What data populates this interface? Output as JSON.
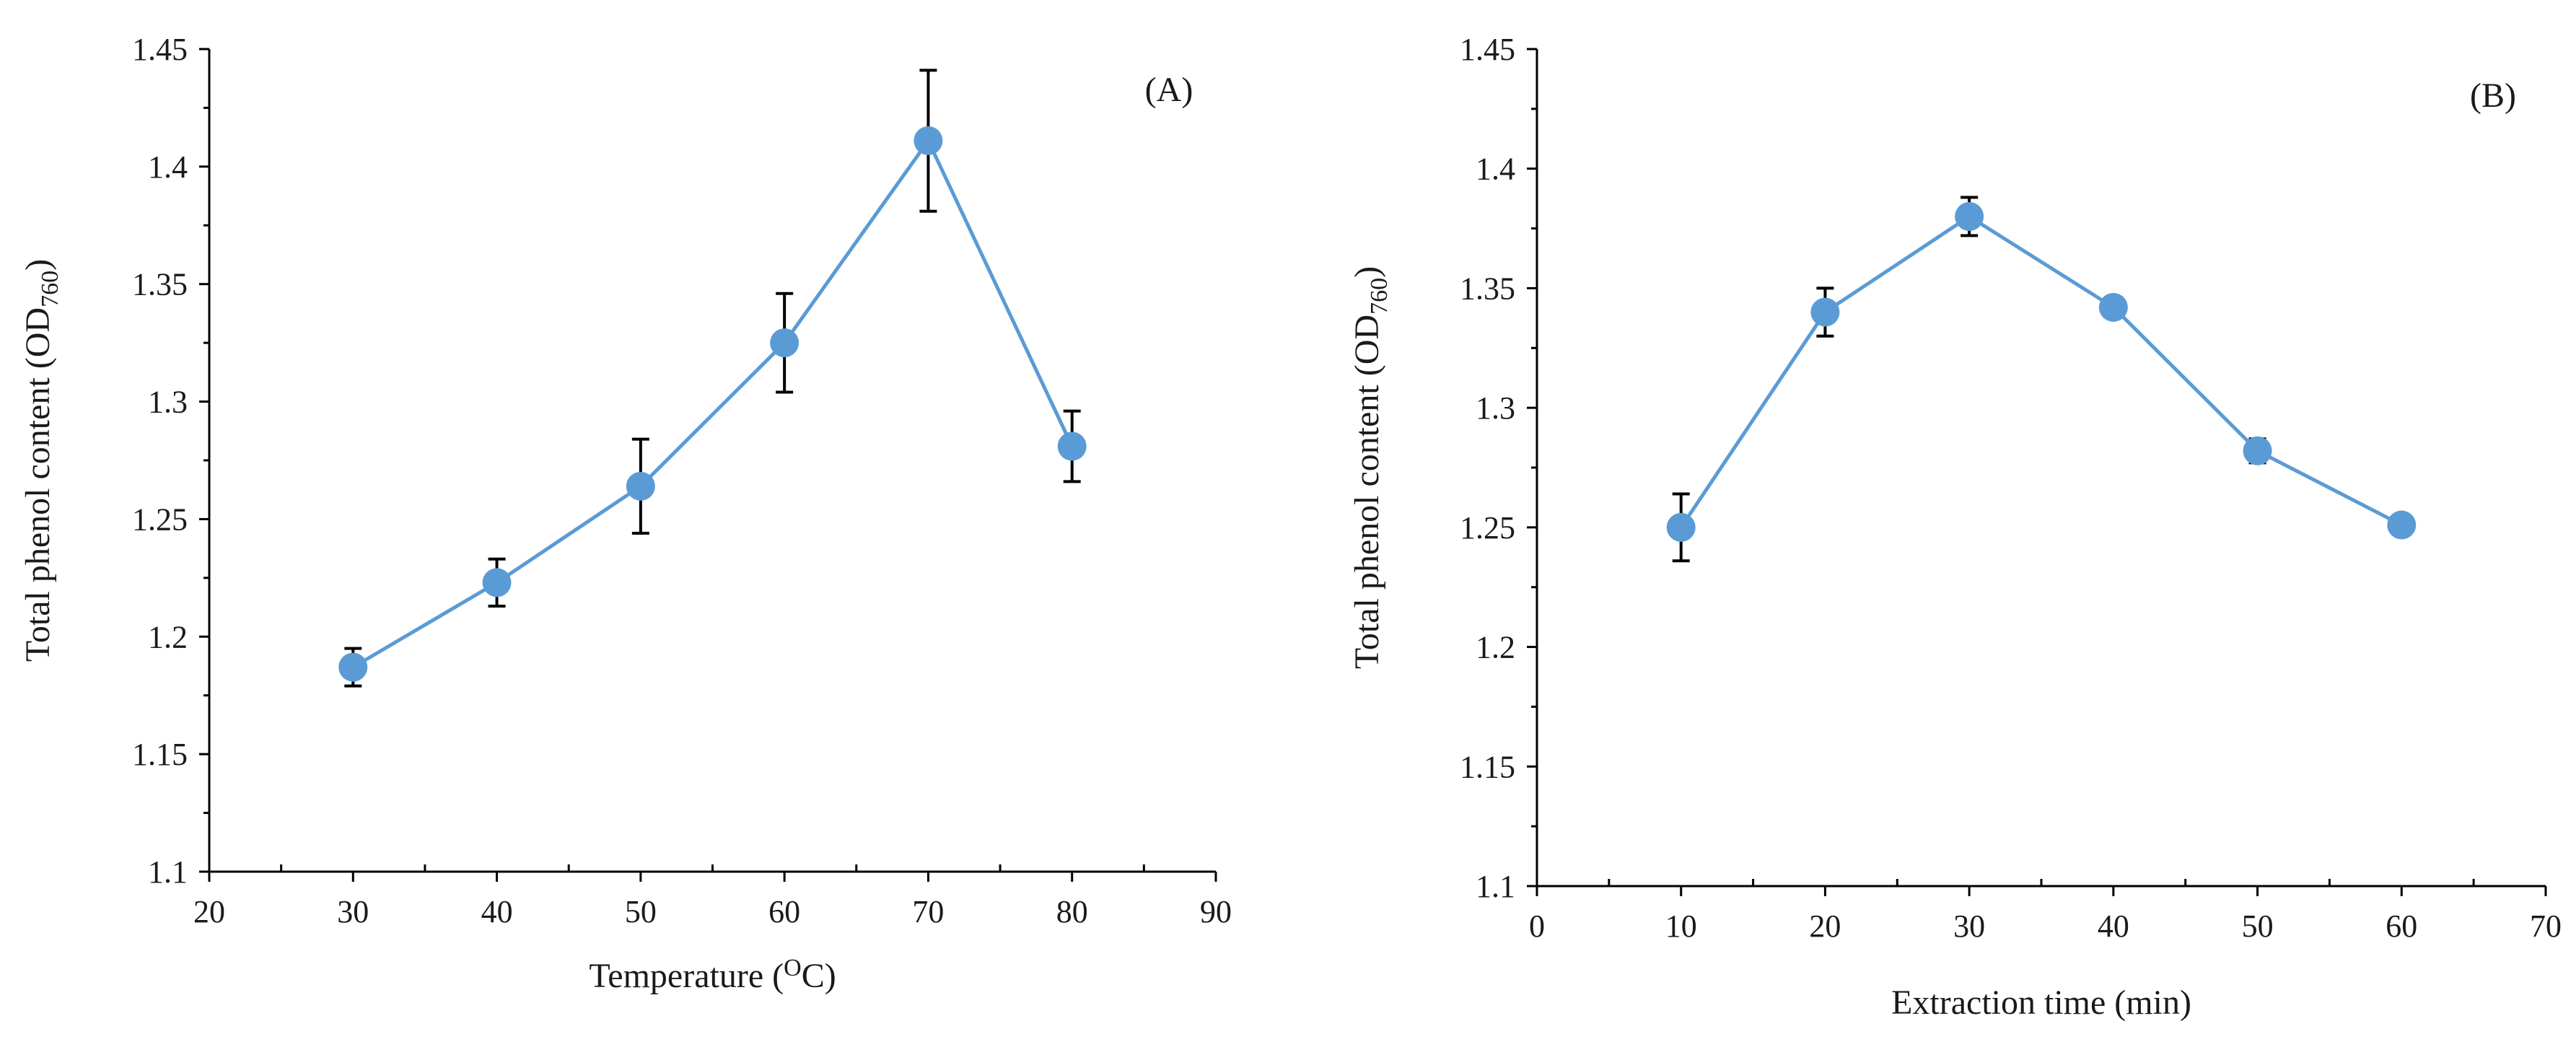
{
  "colors": {
    "series": "#5b9bd5",
    "axis": "#000000",
    "text": "#1a1a1a"
  },
  "chart_data": [
    {
      "type": "line",
      "panel_label": "(A)",
      "title": "",
      "xlabel": "Temperature (",
      "xlabel_sup": "O",
      "xlabel_tail": "C)",
      "ylabel": "Total phenol content (OD",
      "ylabel_sub": "760",
      "ylabel_tail": ")",
      "xlim": [
        20,
        90
      ],
      "ylim": [
        1.1,
        1.45
      ],
      "xticks": [
        20,
        30,
        40,
        50,
        60,
        70,
        80,
        90
      ],
      "xtick_labels": [
        "20",
        "30",
        "40",
        "50",
        "60",
        "70",
        "80",
        "90"
      ],
      "yticks": [
        1.1,
        1.15,
        1.2,
        1.25,
        1.3,
        1.35,
        1.4,
        1.45
      ],
      "ytick_labels": [
        "1.1",
        "1.15",
        "1.2",
        "1.25",
        "1.3",
        "1.35",
        "1.4",
        "1.45"
      ],
      "grid": false,
      "series": [
        {
          "name": "Temperature",
          "x": [
            30,
            40,
            50,
            60,
            70,
            80
          ],
          "y": [
            1.187,
            1.223,
            1.264,
            1.325,
            1.411,
            1.281
          ],
          "error": [
            0.008,
            0.01,
            0.02,
            0.021,
            0.03,
            0.015
          ]
        }
      ]
    },
    {
      "type": "line",
      "panel_label": "(B)",
      "title": "",
      "xlabel": "Extraction time (min)",
      "xlabel_sup": "",
      "xlabel_tail": "",
      "ylabel": "Total phenol content (OD",
      "ylabel_sub": "760",
      "ylabel_tail": ")",
      "xlim": [
        0,
        70
      ],
      "ylim": [
        1.1,
        1.45
      ],
      "xticks": [
        0,
        10,
        20,
        30,
        40,
        50,
        60,
        70
      ],
      "xtick_labels": [
        "0",
        "10",
        "20",
        "30",
        "40",
        "50",
        "60",
        "70"
      ],
      "yticks": [
        1.1,
        1.15,
        1.2,
        1.25,
        1.3,
        1.35,
        1.4,
        1.45
      ],
      "ytick_labels": [
        "1.1",
        "1.15",
        "1.2",
        "1.25",
        "1.3",
        "1.35",
        "1.4",
        "1.45"
      ],
      "grid": false,
      "series": [
        {
          "name": "Extraction time",
          "x": [
            10,
            20,
            30,
            40,
            50,
            60
          ],
          "y": [
            1.25,
            1.34,
            1.38,
            1.342,
            1.282,
            1.251
          ],
          "error": [
            0.014,
            0.01,
            0.008,
            0.004,
            0.005,
            0.003
          ]
        }
      ]
    }
  ]
}
